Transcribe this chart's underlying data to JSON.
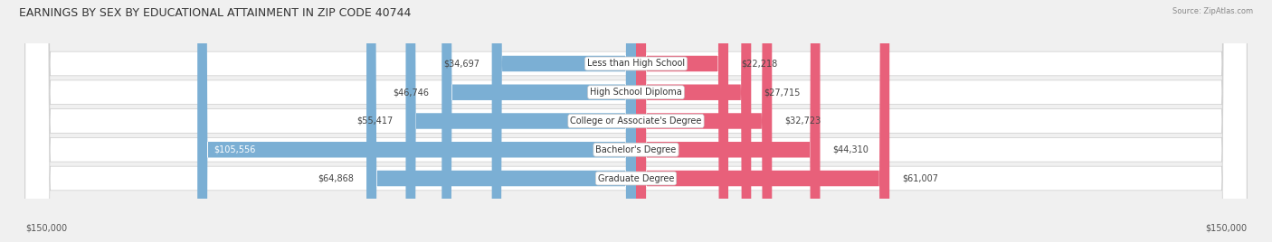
{
  "title": "EARNINGS BY SEX BY EDUCATIONAL ATTAINMENT IN ZIP CODE 40744",
  "source": "Source: ZipAtlas.com",
  "categories": [
    "Less than High School",
    "High School Diploma",
    "College or Associate's Degree",
    "Bachelor's Degree",
    "Graduate Degree"
  ],
  "male_values": [
    34697,
    46746,
    55417,
    105556,
    64868
  ],
  "female_values": [
    22218,
    27715,
    32723,
    44310,
    61007
  ],
  "male_labels": [
    "$34,697",
    "$46,746",
    "$55,417",
    "$105,556",
    "$64,868"
  ],
  "female_labels": [
    "$22,218",
    "$27,715",
    "$32,723",
    "$44,310",
    "$61,007"
  ],
  "male_color": "#7bafd4",
  "female_color": "#e8607a",
  "axis_label_left": "$150,000",
  "axis_label_right": "$150,000",
  "max_value": 150000,
  "background_color": "#f0f0f0",
  "title_fontsize": 9,
  "label_fontsize": 7,
  "category_fontsize": 7
}
